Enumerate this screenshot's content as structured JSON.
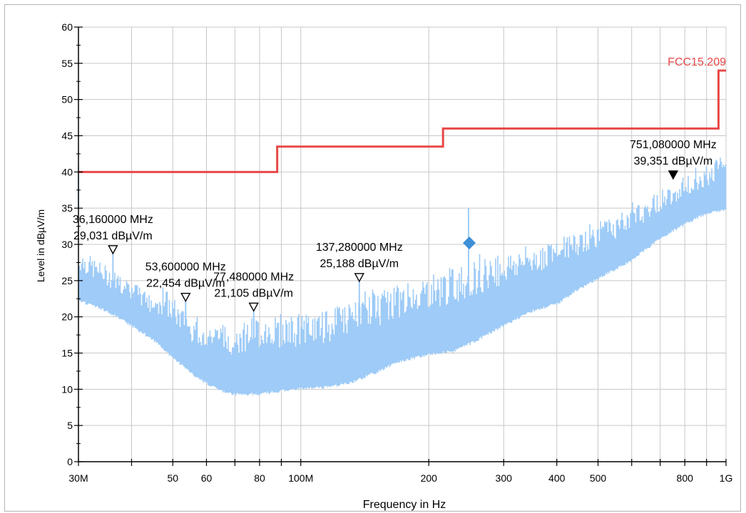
{
  "chart_data": {
    "type": "line",
    "xlabel": "Frequency in Hz",
    "ylabel": "Level in dBµV/m",
    "x_scale": "log",
    "xlim": [
      30,
      1000
    ],
    "ylim": [
      0,
      60
    ],
    "grid": true,
    "xticks": [
      {
        "v": 30,
        "label": "30M"
      },
      {
        "v": 50,
        "label": "50"
      },
      {
        "v": 60,
        "label": "60"
      },
      {
        "v": 80,
        "label": "80"
      },
      {
        "v": 100,
        "label": "100M"
      },
      {
        "v": 200,
        "label": "200"
      },
      {
        "v": 300,
        "label": "300"
      },
      {
        "v": 400,
        "label": "400"
      },
      {
        "v": 500,
        "label": "500"
      },
      {
        "v": 800,
        "label": "800"
      },
      {
        "v": 1000,
        "label": "1G"
      }
    ],
    "yticks": [
      0,
      5,
      10,
      15,
      20,
      25,
      30,
      35,
      40,
      45,
      50,
      55,
      60
    ],
    "limit_line": {
      "name": "FCC15.209",
      "color": "#e84848",
      "steps": [
        {
          "from": 30,
          "to": 88,
          "level": 40
        },
        {
          "from": 88,
          "to": 216,
          "level": 43.5
        },
        {
          "from": 216,
          "to": 960,
          "level": 46
        },
        {
          "from": 960,
          "to": 1000,
          "level": 54
        }
      ]
    },
    "spectrum": {
      "color": "#9ecbf7",
      "envelope": [
        {
          "f": 30,
          "max": 29.5,
          "min": 22.5
        },
        {
          "f": 35,
          "max": 27,
          "min": 21
        },
        {
          "f": 40,
          "max": 25,
          "min": 19
        },
        {
          "f": 45,
          "max": 23,
          "min": 17
        },
        {
          "f": 48,
          "max": 24,
          "min": 15.5
        },
        {
          "f": 55,
          "max": 20,
          "min": 12.5
        },
        {
          "f": 60,
          "max": 19.5,
          "min": 11
        },
        {
          "f": 65,
          "max": 19,
          "min": 10
        },
        {
          "f": 70,
          "max": 19,
          "min": 9.5
        },
        {
          "f": 75,
          "max": 20,
          "min": 9.5
        },
        {
          "f": 80,
          "max": 20.5,
          "min": 9.5
        },
        {
          "f": 90,
          "max": 20.5,
          "min": 10
        },
        {
          "f": 100,
          "max": 20.5,
          "min": 10.3
        },
        {
          "f": 115,
          "max": 21,
          "min": 10.5
        },
        {
          "f": 130,
          "max": 22,
          "min": 11
        },
        {
          "f": 150,
          "max": 23.5,
          "min": 12.5
        },
        {
          "f": 170,
          "max": 24.5,
          "min": 14
        },
        {
          "f": 200,
          "max": 26,
          "min": 15
        },
        {
          "f": 230,
          "max": 27,
          "min": 15.5
        },
        {
          "f": 260,
          "max": 28,
          "min": 17
        },
        {
          "f": 300,
          "max": 29,
          "min": 19
        },
        {
          "f": 350,
          "max": 30,
          "min": 21
        },
        {
          "f": 400,
          "max": 31,
          "min": 22
        },
        {
          "f": 450,
          "max": 32,
          "min": 24
        },
        {
          "f": 500,
          "max": 33,
          "min": 25.5
        },
        {
          "f": 600,
          "max": 35,
          "min": 28
        },
        {
          "f": 700,
          "max": 37.5,
          "min": 31
        },
        {
          "f": 800,
          "max": 39.5,
          "min": 33
        },
        {
          "f": 900,
          "max": 41,
          "min": 34.5
        },
        {
          "f": 1000,
          "max": 42.5,
          "min": 35
        }
      ],
      "spikes": [
        {
          "f": 36.16,
          "level": 29.0
        },
        {
          "f": 53.6,
          "level": 22.5
        },
        {
          "f": 77.48,
          "level": 21.1
        },
        {
          "f": 137.28,
          "level": 25.2
        },
        {
          "f": 248,
          "level": 35
        }
      ]
    },
    "peak_marker": {
      "f": 249,
      "level": 30.2,
      "color": "#3d8fd6"
    },
    "markers": [
      {
        "f": 36.16,
        "level": 29.031,
        "freq_label": "36,160000 MHz",
        "level_label": "29,031 dBµV/m",
        "filled": false
      },
      {
        "f": 53.6,
        "level": 22.454,
        "freq_label": "53,600000 MHz",
        "level_label": "22,454 dBµV/m",
        "filled": false
      },
      {
        "f": 77.48,
        "level": 21.105,
        "freq_label": "77,480000 MHz",
        "level_label": "21,105 dBµV/m",
        "filled": false
      },
      {
        "f": 137.28,
        "level": 25.188,
        "freq_label": "137,280000 MHz",
        "level_label": "25,188 dBµV/m",
        "filled": false
      },
      {
        "f": 751.08,
        "level": 39.351,
        "freq_label": "751,080000 MHz",
        "level_label": "39,351 dBµV/m",
        "filled": true
      }
    ]
  }
}
